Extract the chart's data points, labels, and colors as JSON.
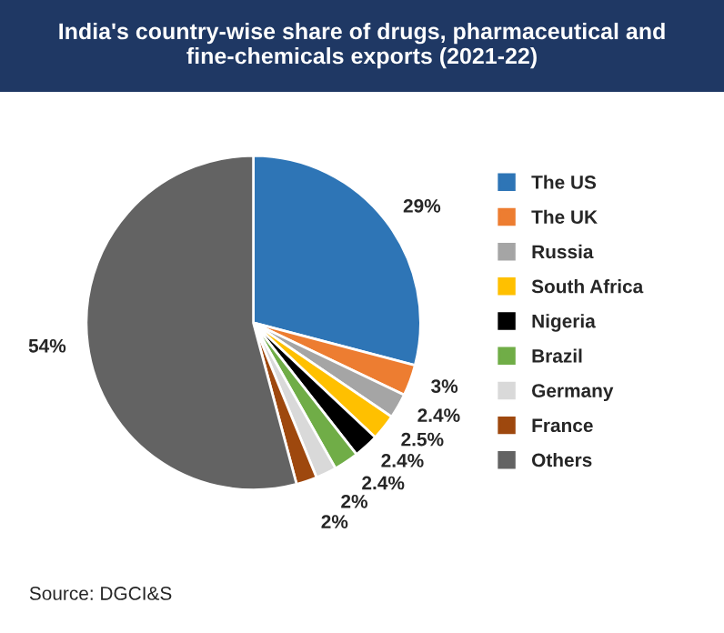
{
  "chart_data": {
    "type": "pie",
    "title": "India's country-wise share of drugs, pharmaceutical and fine-chemicals exports (2021-22)",
    "categories": [
      "The US",
      "The UK",
      "Russia",
      "South Africa",
      "Nigeria",
      "Brazil",
      "Germany",
      "France",
      "Others"
    ],
    "values": [
      29,
      3,
      2.4,
      2.5,
      2.4,
      2.4,
      2,
      2,
      54
    ],
    "colors": [
      "#2e75b6",
      "#ed7d31",
      "#a5a5a5",
      "#ffc000",
      "#000000",
      "#70ad47",
      "#d9d9d9",
      "#9e480e",
      "#636363"
    ],
    "value_labels": [
      "29%",
      "3%",
      "2.4%",
      "2.5%",
      "2.4%",
      "2.4%",
      "2%",
      "2%",
      "54%"
    ],
    "legend": "right",
    "annotations": [
      "Source: DGCI&S"
    ]
  }
}
